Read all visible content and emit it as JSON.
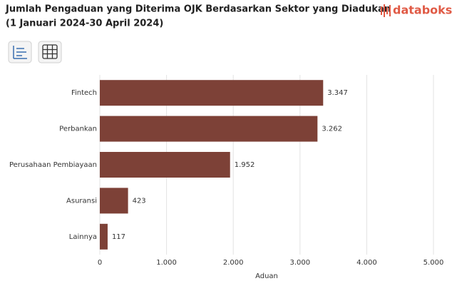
{
  "brand": "databoks",
  "chart_data": {
    "type": "bar",
    "title": "Jumlah Pengaduan yang Diterima OJK Berdasarkan Sektor yang Diadukan",
    "subtitle": "(1 Januari 2024-30 April 2024)",
    "x_label": "Aduan",
    "categories": [
      "Fintech",
      "Perbankan",
      "Perusahaan Pembiayaan",
      "Asuransi",
      "Lainnya"
    ],
    "values": [
      3347,
      3262,
      1952,
      423,
      117
    ],
    "value_labels": [
      "3.347",
      "3.262",
      "1.952",
      "423",
      "117"
    ],
    "color": "#7d4137",
    "xlim": [
      0,
      5000
    ],
    "xticks": [
      0,
      {
        "value": 1000,
        "label": "1.000"
      },
      {
        "value": 2000,
        "label": "2.000"
      },
      {
        "value": 3000,
        "label": "3.000"
      },
      {
        "value": 4000,
        "label": "4.000"
      },
      {
        "value": 5000,
        "label": "5.000"
      }
    ],
    "grid": true
  }
}
